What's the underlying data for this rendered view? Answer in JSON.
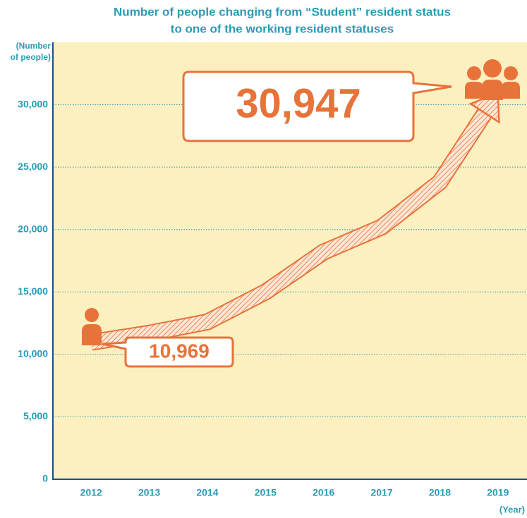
{
  "chart_data": {
    "type": "line",
    "title": [
      "Number of people changing from “Student” resident status",
      "to one of the working resident statuses"
    ],
    "y_label": [
      "(Number",
      "of people)"
    ],
    "x_label": "(Year)",
    "categories": [
      "2012",
      "2013",
      "2014",
      "2015",
      "2016",
      "2017",
      "2018",
      "2019"
    ],
    "values": [
      10969,
      11700,
      12600,
      15000,
      18200,
      20200,
      23800,
      30947
    ],
    "value_labels": [
      "10,969",
      null,
      null,
      null,
      null,
      null,
      null,
      "30,947"
    ],
    "color": "#e8733a",
    "ylim": [
      0,
      35000
    ],
    "yticks": [
      0,
      {
        "value": 5000,
        "label": "5,000"
      },
      {
        "value": 10000,
        "label": "10,000"
      },
      {
        "value": 15000,
        "label": "15,000"
      },
      {
        "value": 20000,
        "label": "20,000"
      },
      {
        "value": 25000,
        "label": "25,000"
      },
      {
        "value": 30000,
        "label": "30,000"
      }
    ],
    "grid": true
  }
}
